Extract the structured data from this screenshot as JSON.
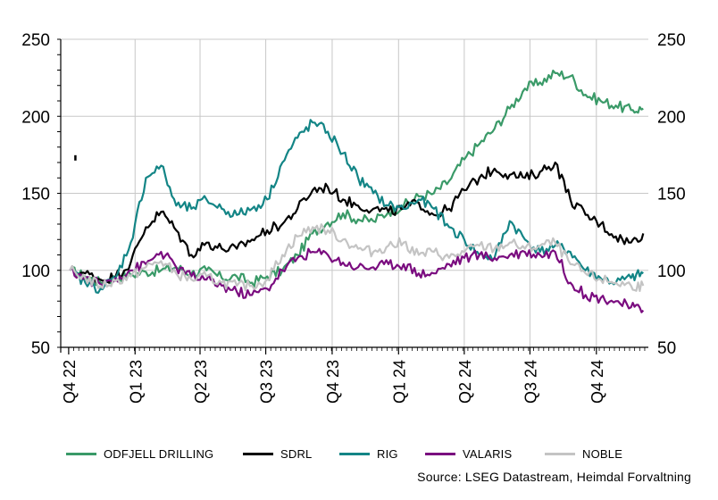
{
  "chart_data": {
    "type": "line",
    "title": "",
    "xlabel": "",
    "ylabel": "",
    "ylim": [
      50,
      250
    ],
    "yticks": [
      50,
      100,
      150,
      200,
      250
    ],
    "grid": true,
    "legend_position": "bottom",
    "x_quarter_labels": [
      "Q4 22",
      "Q1 23",
      "Q2 23",
      "Q3 23",
      "Q4 23",
      "Q1 24",
      "Q2 24",
      "Q3 24",
      "Q4 24"
    ],
    "x": [
      "2022-10-03",
      "2022-10-24",
      "2022-11-14",
      "2022-12-05",
      "2022-12-26",
      "2023-01-16",
      "2023-02-06",
      "2023-02-27",
      "2023-03-20",
      "2023-04-10",
      "2023-05-01",
      "2023-05-22",
      "2023-06-12",
      "2023-07-03",
      "2023-07-24",
      "2023-08-14",
      "2023-09-04",
      "2023-09-25",
      "2023-10-16",
      "2023-11-06",
      "2023-11-27",
      "2023-12-18",
      "2024-01-08",
      "2024-01-29",
      "2024-02-19",
      "2024-03-11",
      "2024-04-01",
      "2024-04-22",
      "2024-05-13",
      "2024-06-03",
      "2024-06-24",
      "2024-07-15",
      "2024-08-05",
      "2024-08-26",
      "2024-09-16",
      "2024-10-07",
      "2024-10-28",
      "2024-11-18",
      "2024-12-05"
    ],
    "series": [
      {
        "name": "ODFJELL DRILLING",
        "color": "#3a9a68",
        "values": [
          100,
          96,
          92,
          95,
          97,
          99,
          100,
          102,
          98,
          100,
          95,
          96,
          92,
          96,
          100,
          110,
          124,
          131,
          137,
          133,
          132,
          138,
          142,
          148,
          150,
          158,
          172,
          182,
          192,
          205,
          218,
          222,
          228,
          226,
          214,
          210,
          207,
          204,
          205
        ]
      },
      {
        "name": "SDRL",
        "color": "#000000",
        "values": [
          100,
          98,
          94,
          96,
          105,
          128,
          138,
          126,
          110,
          118,
          114,
          114,
          120,
          126,
          130,
          140,
          152,
          154,
          146,
          142,
          140,
          138,
          140,
          144,
          136,
          140,
          152,
          160,
          166,
          162,
          160,
          164,
          170,
          146,
          136,
          130,
          122,
          118,
          124
        ]
      },
      {
        "name": "RIG",
        "color": "#138586",
        "values": [
          100,
          92,
          88,
          95,
          118,
          160,
          168,
          142,
          140,
          146,
          140,
          136,
          140,
          146,
          170,
          186,
          196,
          190,
          176,
          160,
          150,
          142,
          140,
          146,
          140,
          128,
          120,
          110,
          108,
          132,
          120,
          112,
          116,
          112,
          100,
          95,
          92,
          95,
          98
        ]
      },
      {
        "name": "VALARIS",
        "color": "#7a0c7f",
        "values": [
          100,
          95,
          91,
          95,
          100,
          104,
          112,
          102,
          96,
          94,
          90,
          86,
          84,
          88,
          100,
          108,
          112,
          110,
          105,
          102,
          102,
          104,
          104,
          98,
          98,
          104,
          108,
          110,
          108,
          110,
          112,
          110,
          112,
          92,
          84,
          82,
          80,
          76,
          74
        ]
      },
      {
        "name": "NOBLE",
        "color": "#c4c4c4",
        "values": [
          100,
          95,
          90,
          93,
          96,
          102,
          106,
          98,
          94,
          96,
          92,
          90,
          90,
          94,
          110,
          122,
          128,
          126,
          120,
          114,
          112,
          116,
          118,
          110,
          112,
          108,
          112,
          116,
          114,
          118,
          114,
          116,
          118,
          104,
          98,
          94,
          92,
          90,
          90
        ]
      }
    ],
    "annotations": [
      {
        "text": "•",
        "x": "2022-10-10",
        "y": 173
      }
    ]
  },
  "legend": [
    {
      "label": "ODFJELL DRILLING",
      "color": "#3a9a68"
    },
    {
      "label": "SDRL",
      "color": "#000000"
    },
    {
      "label": "RIG",
      "color": "#138586"
    },
    {
      "label": "VALARIS",
      "color": "#7a0c7f"
    },
    {
      "label": "NOBLE",
      "color": "#c4c4c4"
    }
  ],
  "source": "Source: LSEG Datastream, Heimdal Forvaltning"
}
